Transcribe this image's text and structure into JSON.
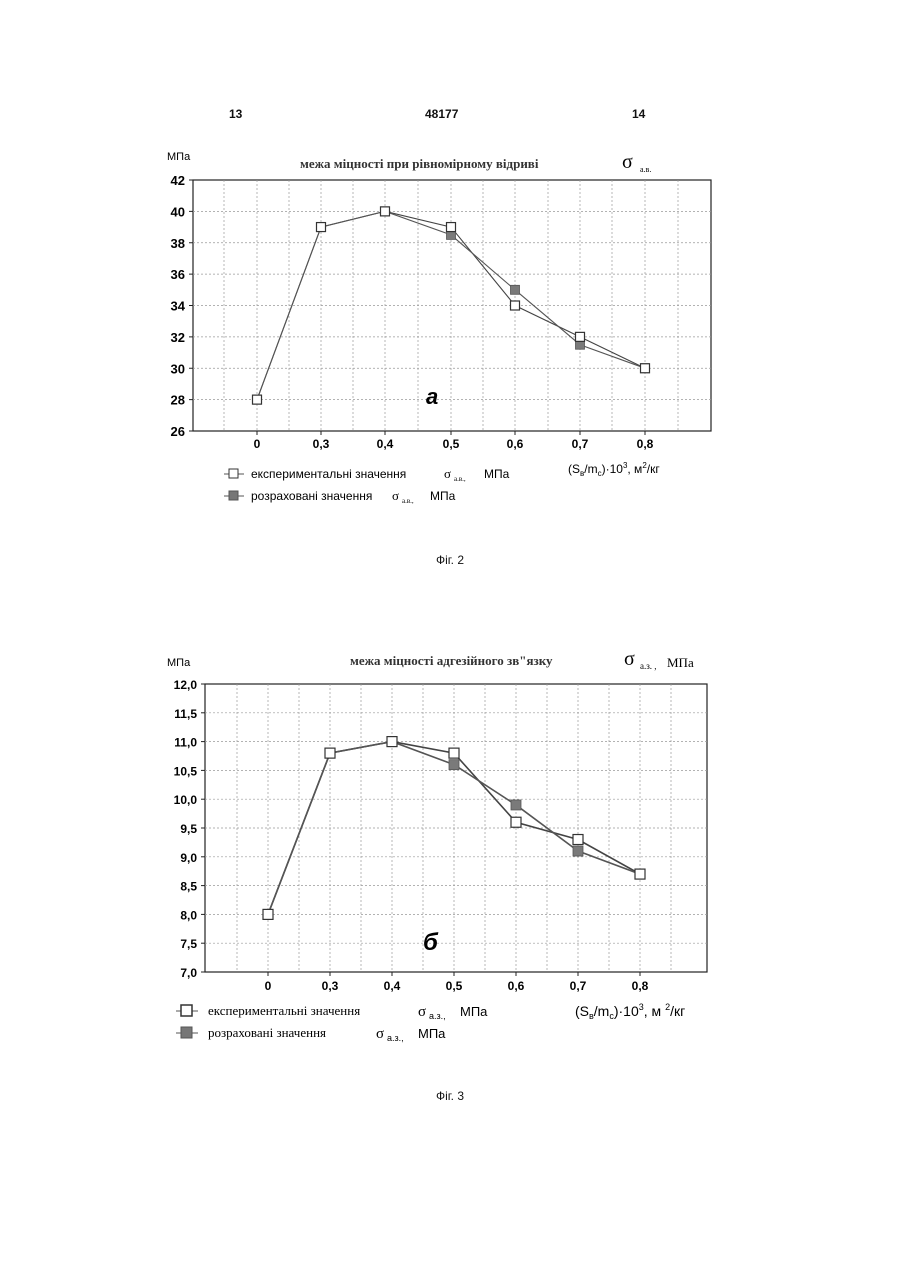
{
  "header": {
    "left_page": "13",
    "center_number": "48177",
    "right_page": "14"
  },
  "figures": [
    {
      "caption": "Фіг. 2",
      "unit": "МПа",
      "title": "межа міцності при рівномірному відриві",
      "title_symbol": "σ",
      "title_subscript": "а.в.",
      "letter": "а",
      "xaxis_label": "(S_в/m_с)·10³, м²/кг",
      "legend": [
        {
          "text": "експериментальні значення",
          "symbol": "σ",
          "sub": "а.в.,",
          "unit": "МПа"
        },
        {
          "text": "розраховані значення",
          "symbol": "σ",
          "sub": "а.в.,",
          "unit": "МПа"
        }
      ]
    },
    {
      "caption": "Фіг. 3",
      "unit": "МПа",
      "title": "межа міцності адгезійного зв\"язку",
      "title_symbol": "σ",
      "title_subscript": "а.з. ,",
      "title_unit": "МПа",
      "letter": "б",
      "xaxis_label": "(S_в/m_с)·10³, м ²/кг",
      "legend": [
        {
          "text": "експериментальні значення",
          "symbol": "σ",
          "sub": "а.з.,",
          "unit": "МПа"
        },
        {
          "text": "розраховані значення",
          "symbol": "σ",
          "sub": "а.з.,",
          "unit": "МПа"
        }
      ]
    }
  ],
  "chart_data": [
    {
      "type": "line",
      "title": "межа міцності при рівномірному відриві σ а.в.",
      "ylabel": "МПа",
      "xlabel": "(Sв/mс)·10³, м²/кг",
      "categories": [
        "0",
        "0,3",
        "0,4",
        "0,5",
        "0,6",
        "0,7",
        "0,8"
      ],
      "ylim": [
        26,
        42
      ],
      "yticks": [
        "26",
        "28",
        "30",
        "32",
        "34",
        "36",
        "38",
        "40",
        "42"
      ],
      "grid": true,
      "legend_position": "bottom-left",
      "series": [
        {
          "name": "експериментальні значення σ а.в., МПа",
          "marker": "open-square",
          "values": [
            28,
            39,
            40,
            39,
            34,
            32,
            30
          ]
        },
        {
          "name": "розраховані значення σ а.в., МПа",
          "marker": "filled-square",
          "values": [
            28,
            39,
            40,
            38.5,
            35,
            31.5,
            30
          ]
        }
      ]
    },
    {
      "type": "line",
      "title": "межа міцності адгезійного зв\"язку σ а.з. , МПа",
      "ylabel": "МПа",
      "xlabel": "(Sв/mс)·10³, м ²/кг",
      "categories": [
        "0",
        "0,3",
        "0,4",
        "0,5",
        "0,6",
        "0,7",
        "0,8"
      ],
      "ylim": [
        7.0,
        12.0
      ],
      "yticks": [
        "7,0",
        "7,5",
        "8,0",
        "8,5",
        "9,0",
        "9,5",
        "10,0",
        "10,5",
        "11,0",
        "11,5",
        "12,0"
      ],
      "grid": true,
      "legend_position": "bottom-left",
      "series": [
        {
          "name": "експериментальні значення σ а.з., МПа",
          "marker": "open-square",
          "values": [
            8.0,
            10.8,
            11.0,
            10.8,
            9.6,
            9.3,
            8.7
          ]
        },
        {
          "name": "розраховані значення σ а.з., МПа",
          "marker": "filled-square",
          "values": [
            8.0,
            10.8,
            11.0,
            10.6,
            9.9,
            9.1,
            8.7
          ]
        }
      ]
    }
  ]
}
